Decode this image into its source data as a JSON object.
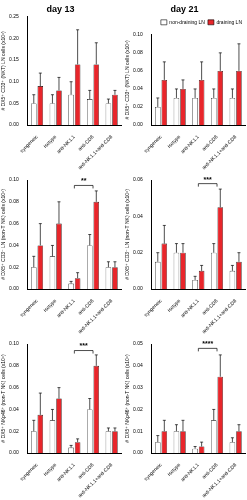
{
  "chart_data": [
    {
      "type": "bar",
      "title": "day 13",
      "y_label": "# DX5⁺ CD3⁺ (NKT) LN cells (x10⁵)",
      "categories": [
        "syngeneic",
        "isotype",
        "anti-NK1.1",
        "anti-CD8",
        "anti-NK1.1+anti-CD8"
      ],
      "series": [
        {
          "name": "non-draining LN",
          "color": "#ffffff",
          "values": [
            0.05,
            0.05,
            0.07,
            0.06,
            0.05
          ],
          "errors": [
            0.02,
            0.02,
            0.03,
            0.02,
            0.01
          ]
        },
        {
          "name": "draining LN",
          "color": "#e8262b",
          "values": [
            0.09,
            0.08,
            0.14,
            0.14,
            0.07
          ],
          "errors": [
            0.03,
            0.03,
            0.08,
            0.05,
            0.01
          ]
        }
      ],
      "ylim": [
        0,
        0.25
      ],
      "yticks": [
        {
          "value": 0,
          "label": "0.00"
        },
        0.05,
        {
          "value": 0.1,
          "label": "0.10"
        },
        0.15,
        {
          "value": 0.2,
          "label": "0.20"
        },
        0.25
      ]
    },
    {
      "type": "bar",
      "title": "day 21",
      "y_label": "# DX5⁺ CD3⁺ (NKT) LN cells (x10⁵)",
      "categories": [
        "syngeneic",
        "isotype",
        "anti-NK1.1",
        "anti-CD8",
        "anti-NK1.1+anti-CD8"
      ],
      "series": [
        {
          "name": "non-draining LN",
          "color": "#ffffff",
          "values": [
            0.02,
            0.03,
            0.03,
            0.03,
            0.03
          ],
          "errors": [
            0.01,
            0.01,
            0.01,
            0.01,
            0.01
          ]
        },
        {
          "name": "draining LN",
          "color": "#e8262b",
          "values": [
            0.05,
            0.04,
            0.05,
            0.06,
            0.06
          ],
          "errors": [
            0.02,
            0.01,
            0.02,
            0.02,
            0.03
          ]
        }
      ],
      "ylim": [
        0,
        0.1
      ],
      "yticks": [
        {
          "value": 0,
          "label": "0.00"
        },
        0.02,
        0.04,
        0.06,
        0.08,
        {
          "value": 0.1,
          "label": "0.10"
        }
      ],
      "legend": "upper right"
    },
    {
      "type": "bar",
      "y_label": "# DX5⁺ CD3⁻ LN (non-T NK) cells (x10⁵)",
      "categories": [
        "syngeneic",
        "isotype",
        "anti-NK1.1",
        "anti-CD8",
        "anti-NK1.1+anti-CD8"
      ],
      "series": [
        {
          "name": "non-draining LN",
          "color": "#ffffff",
          "values": [
            0.02,
            0.03,
            0.005,
            0.04,
            0.02
          ],
          "errors": [
            0.01,
            0.01,
            0.002,
            0.01,
            0.005
          ]
        },
        {
          "name": "draining LN",
          "color": "#e8262b",
          "values": [
            0.04,
            0.06,
            0.01,
            0.08,
            0.02
          ],
          "errors": [
            0.02,
            0.02,
            0.005,
            0.01,
            0.005
          ]
        }
      ],
      "ylim": [
        0,
        0.1
      ],
      "yticks": [
        {
          "value": 0,
          "label": "0.00"
        },
        0.02,
        0.04,
        0.06,
        0.08,
        {
          "value": 0.1,
          "label": "0.10"
        }
      ],
      "annotations": [
        {
          "text": "**",
          "from": "anti-NK1.1",
          "to": "anti-CD8",
          "y": 0.095
        }
      ]
    },
    {
      "type": "bar",
      "y_label": "# DX5⁺ CD3⁻ LN (non-T NK) cells (x10⁵)",
      "categories": [
        "syngeneic",
        "isotype",
        "anti-NK1.1",
        "anti-CD8",
        "anti-NK1.1+anti-CD8"
      ],
      "series": [
        {
          "name": "non-draining LN",
          "color": "#ffffff",
          "values": [
            0.015,
            0.02,
            0.005,
            0.02,
            0.01
          ],
          "errors": [
            0.005,
            0.005,
            0.002,
            0.005,
            0.003
          ]
        },
        {
          "name": "draining LN",
          "color": "#e8262b",
          "values": [
            0.025,
            0.02,
            0.01,
            0.045,
            0.015
          ],
          "errors": [
            0.01,
            0.005,
            0.003,
            0.01,
            0.005
          ]
        }
      ],
      "ylim": [
        0,
        0.06
      ],
      "yticks": [
        {
          "value": 0,
          "label": "0.00"
        },
        0.02,
        0.04,
        0.06
      ],
      "annotations": [
        {
          "text": "***",
          "from": "anti-NK1.1",
          "to": "anti-CD8",
          "y": 0.058
        }
      ]
    },
    {
      "type": "bar",
      "y_label": "# DX5⁺ NKp46⁺ (non-T NK) cells (x10⁵)",
      "categories": [
        "syngeneic",
        "isotype",
        "anti-NK1.1",
        "anti-CD8",
        "anti-NK1.1+anti-CD8"
      ],
      "series": [
        {
          "name": "non-draining LN",
          "color": "#ffffff",
          "values": [
            0.02,
            0.03,
            0.005,
            0.04,
            0.02
          ],
          "errors": [
            0.01,
            0.01,
            0.002,
            0.01,
            0.003
          ]
        },
        {
          "name": "draining LN",
          "color": "#e8262b",
          "values": [
            0.035,
            0.05,
            0.01,
            0.08,
            0.02
          ],
          "errors": [
            0.02,
            0.01,
            0.003,
            0.01,
            0.003
          ]
        }
      ],
      "ylim": [
        0,
        0.1
      ],
      "yticks": [
        {
          "value": 0,
          "label": "0.00"
        },
        0.02,
        0.04,
        0.06,
        0.08,
        {
          "value": 0.1,
          "label": "0.10"
        }
      ],
      "annotations": [
        {
          "text": "***",
          "from": "anti-NK1.1",
          "to": "anti-CD8",
          "y": 0.094
        }
      ]
    },
    {
      "type": "bar",
      "y_label": "# DX5⁺ NKp46⁺ (non-T NK) cells (x10⁵)",
      "categories": [
        "syngeneic",
        "isotype",
        "anti-NK1.1",
        "anti-CD8",
        "anti-NK1.1+anti-CD8"
      ],
      "series": [
        {
          "name": "non-draining LN",
          "color": "#ffffff",
          "values": [
            0.005,
            0.01,
            0.002,
            0.015,
            0.005
          ],
          "errors": [
            0.003,
            0.003,
            0.001,
            0.005,
            0.002
          ]
        },
        {
          "name": "draining LN",
          "color": "#e8262b",
          "values": [
            0.01,
            0.01,
            0.003,
            0.035,
            0.01
          ],
          "errors": [
            0.005,
            0.005,
            0.002,
            0.01,
            0.003
          ]
        }
      ],
      "ylim": [
        0,
        0.05
      ],
      "yticks": [
        {
          "value": 0,
          "label": "0.00"
        },
        0.01,
        0.02,
        0.03,
        0.04,
        0.05
      ],
      "annotations": [
        {
          "text": "****",
          "from": "anti-NK1.1",
          "to": "anti-CD8",
          "y": 0.048
        }
      ]
    }
  ]
}
